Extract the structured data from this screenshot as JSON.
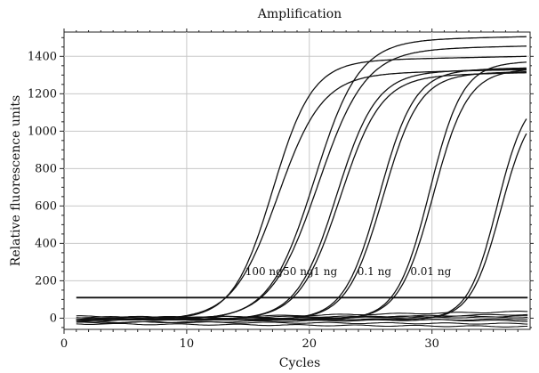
{
  "chart_data": {
    "type": "line",
    "title": "Amplification",
    "xlabel": "Cycles",
    "ylabel": "Relative fluorescence units",
    "xlim": [
      0,
      38
    ],
    "ylim": [
      -60,
      1530
    ],
    "xticks": [
      0,
      10,
      20,
      30
    ],
    "yticks": [
      0,
      200,
      400,
      600,
      800,
      1000,
      1200,
      1400
    ],
    "grid": true,
    "legend": "none",
    "threshold": 110,
    "series": [
      {
        "label": "100 ng",
        "curves": [
          {
            "ct": 17.0,
            "plateau": 1380,
            "slope": 0.62
          },
          {
            "ct": 17.4,
            "plateau": 1310,
            "slope": 0.55
          }
        ]
      },
      {
        "label": "50 ng",
        "curves": [
          {
            "ct": 20.4,
            "plateau": 1490,
            "slope": 0.55
          },
          {
            "ct": 20.7,
            "plateau": 1440,
            "slope": 0.52
          }
        ]
      },
      {
        "label": "1 ng",
        "curves": [
          {
            "ct": 22.2,
            "plateau": 1320,
            "slope": 0.62
          },
          {
            "ct": 22.5,
            "plateau": 1300,
            "slope": 0.6
          }
        ]
      },
      {
        "label": "0.1 ng",
        "curves": [
          {
            "ct": 25.7,
            "plateau": 1330,
            "slope": 0.7
          },
          {
            "ct": 26.0,
            "plateau": 1310,
            "slope": 0.68
          }
        ]
      },
      {
        "label": "0.01 ng",
        "curves": [
          {
            "ct": 29.8,
            "plateau": 1370,
            "slope": 0.75
          },
          {
            "ct": 30.1,
            "plateau": 1330,
            "slope": 0.72
          }
        ]
      },
      {
        "label": "",
        "curves": [
          {
            "ct": 35.3,
            "plateau": 1210,
            "slope": 0.85
          },
          {
            "ct": 35.6,
            "plateau": 1170,
            "slope": 0.82
          }
        ]
      }
    ],
    "annotations": [
      {
        "text": "100 ng",
        "x": 16.3,
        "y": 230
      },
      {
        "text": "50 ng",
        "x": 19.1,
        "y": 230
      },
      {
        "text": "1 ng",
        "x": 21.3,
        "y": 230
      },
      {
        "text": "0.1 ng",
        "x": 25.3,
        "y": 230
      },
      {
        "text": "0.01 ng",
        "x": 29.9,
        "y": 230
      }
    ]
  }
}
